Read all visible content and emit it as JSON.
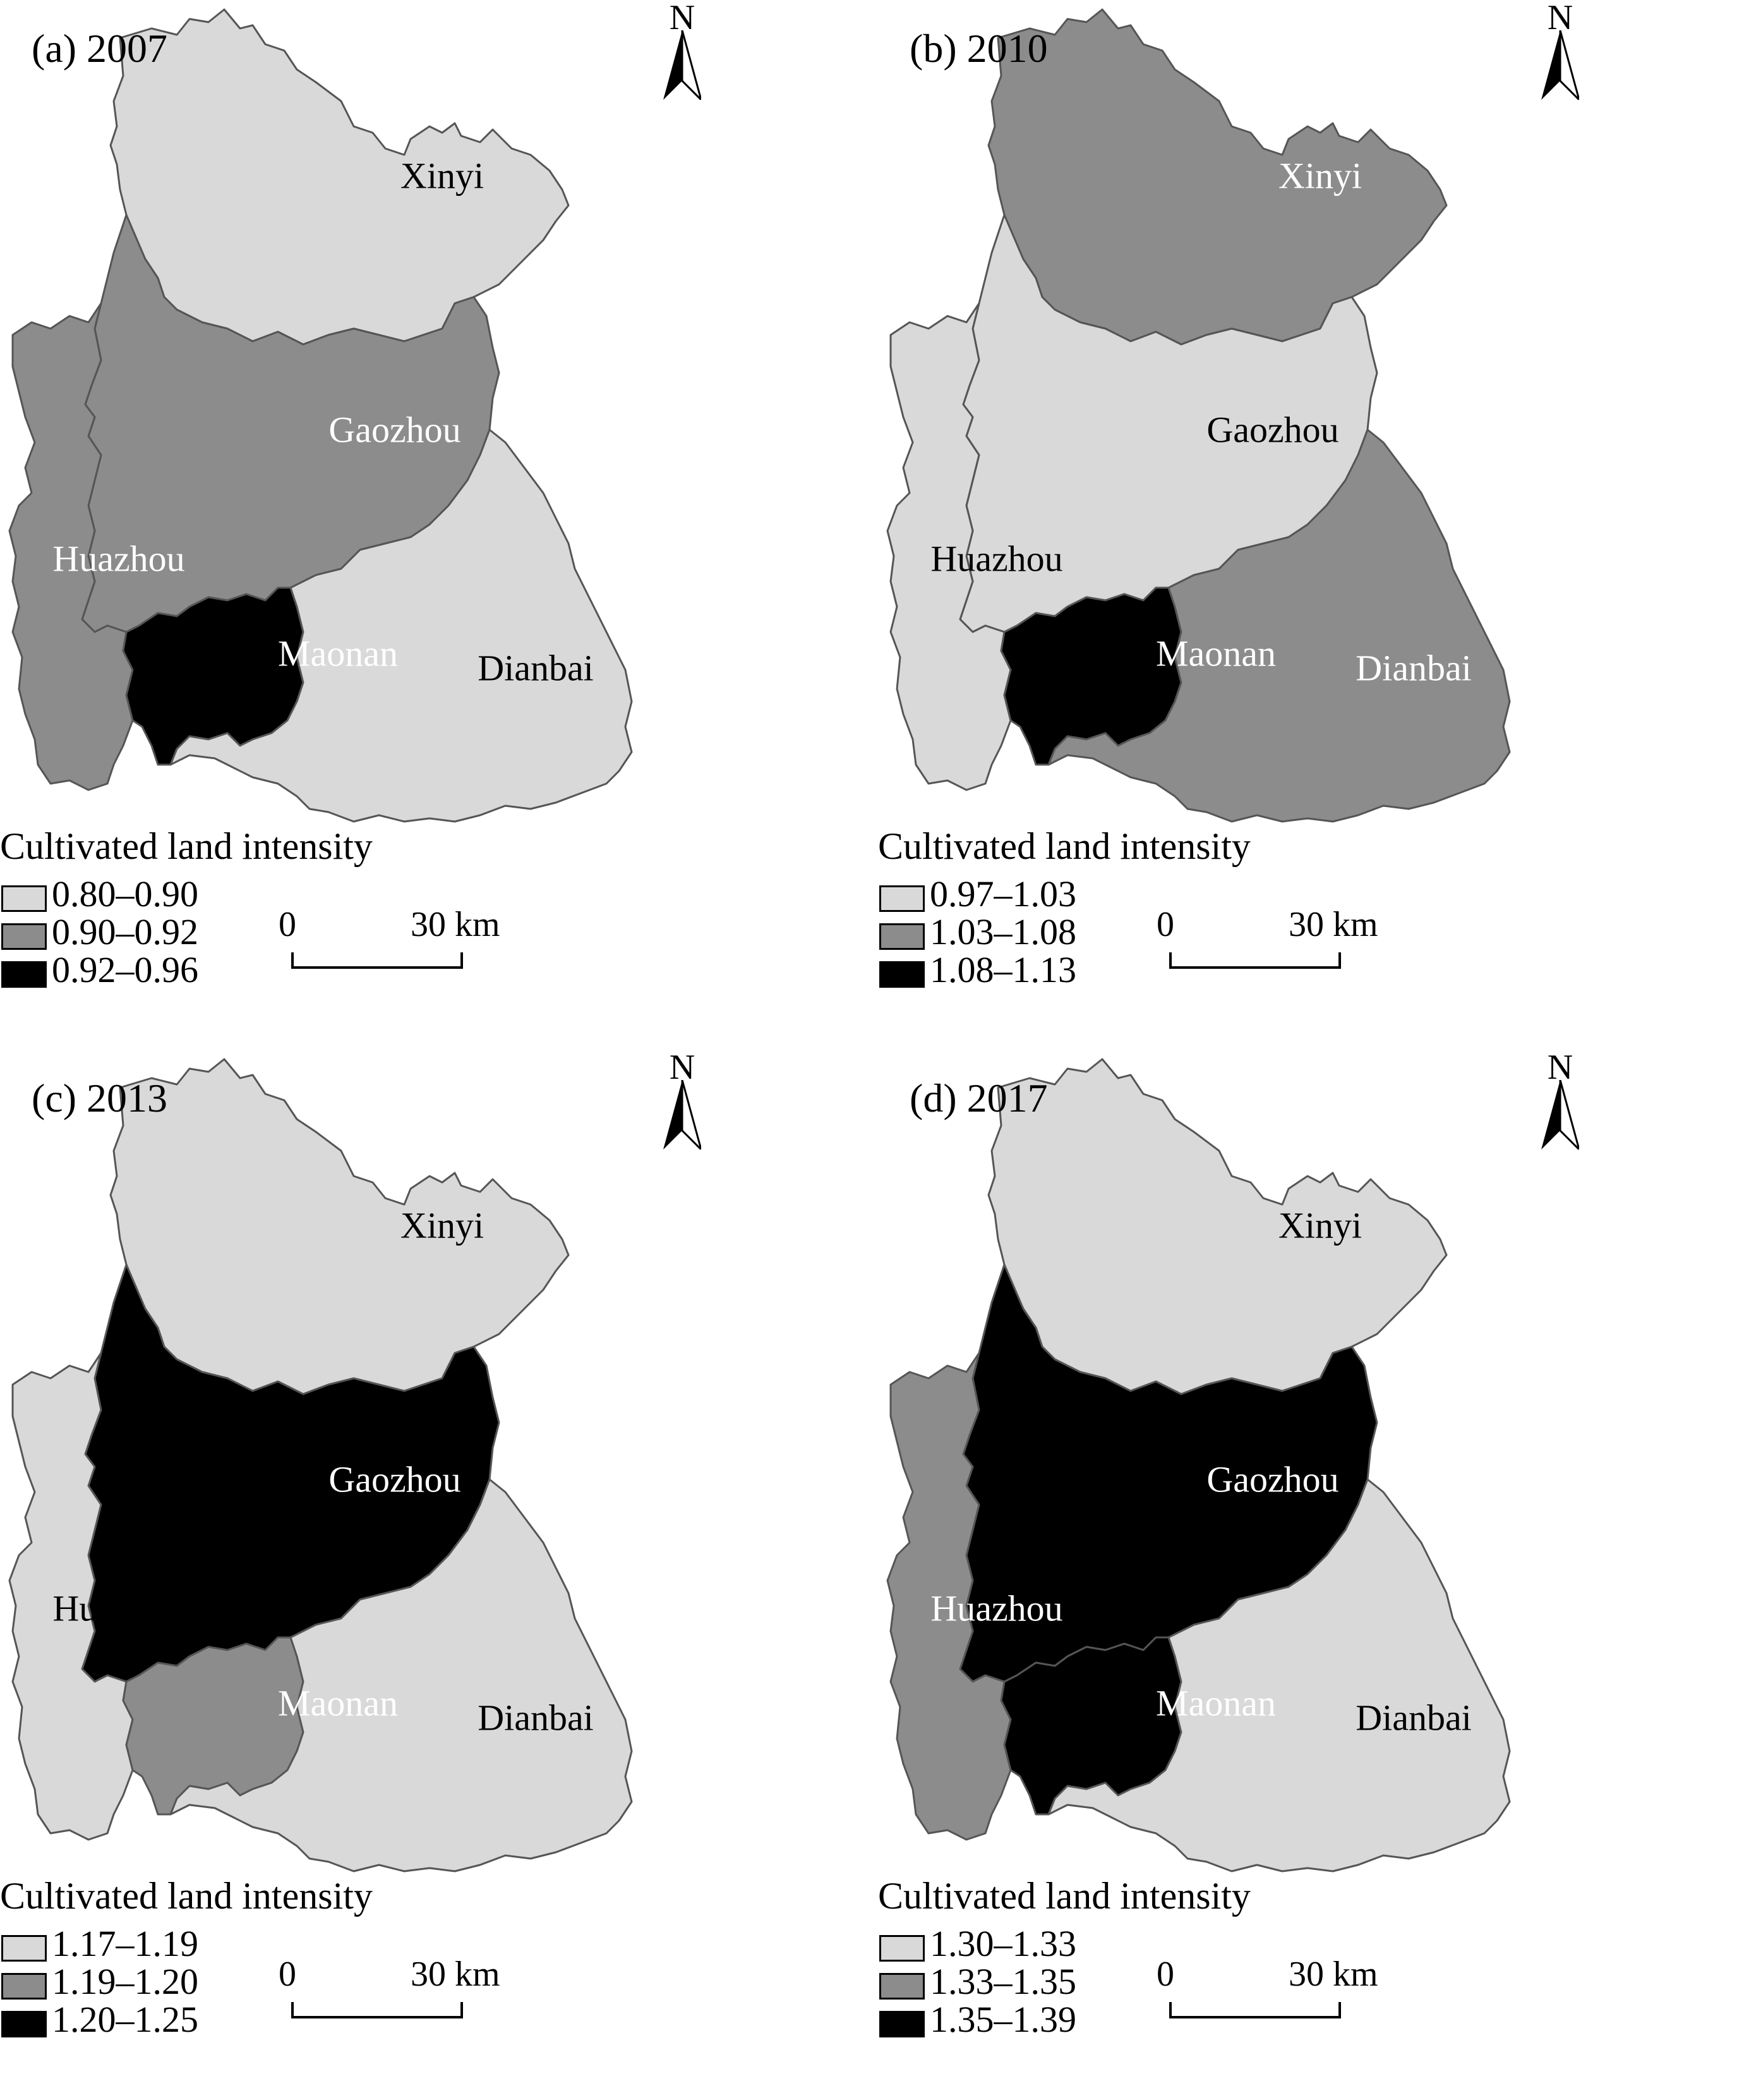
{
  "class_colors": [
    "#d9d9d9",
    "#8c8c8c",
    "#000000"
  ],
  "panels": [
    {
      "title": "(a)  2007",
      "north_label": "N",
      "counties": {
        "Xinyi": {
          "label": "Xinyi",
          "class": 0
        },
        "Gaozhou": {
          "label": "Gaozhou",
          "class": 1
        },
        "Huazhou": {
          "label": "Huazhou",
          "class": 1
        },
        "Maonan": {
          "label": "Maonan",
          "class": 2
        },
        "Dianbai": {
          "label": "Dianbai",
          "class": 0
        }
      },
      "legend": {
        "title": "Cultivated land intensity",
        "items": [
          {
            "range": "0.80–0.90",
            "class": 0
          },
          {
            "range": "0.90–0.92",
            "class": 1
          },
          {
            "range": "0.92–0.96",
            "class": 2
          }
        ]
      },
      "scale": {
        "zero": "0",
        "max": "30 km"
      }
    },
    {
      "title": "(b)  2010",
      "north_label": "N",
      "counties": {
        "Xinyi": {
          "label": "Xinyi",
          "class": 1
        },
        "Gaozhou": {
          "label": "Gaozhou",
          "class": 0
        },
        "Huazhou": {
          "label": "Huazhou",
          "class": 0
        },
        "Maonan": {
          "label": "Maonan",
          "class": 2
        },
        "Dianbai": {
          "label": "Dianbai",
          "class": 1
        }
      },
      "legend": {
        "title": "Cultivated land intensity",
        "items": [
          {
            "range": "0.97–1.03",
            "class": 0
          },
          {
            "range": "1.03–1.08",
            "class": 1
          },
          {
            "range": "1.08–1.13",
            "class": 2
          }
        ]
      },
      "scale": {
        "zero": "0",
        "max": "30 km"
      }
    },
    {
      "title": "(c)  2013",
      "north_label": "N",
      "counties": {
        "Xinyi": {
          "label": "Xinyi",
          "class": 0
        },
        "Gaozhou": {
          "label": "Gaozhou",
          "class": 2
        },
        "Huazhou": {
          "label": "Huazhou",
          "class": 0
        },
        "Maonan": {
          "label": "Maonan",
          "class": 1
        },
        "Dianbai": {
          "label": "Dianbai",
          "class": 0
        }
      },
      "legend": {
        "title": "Cultivated land intensity",
        "items": [
          {
            "range": "1.17–1.19",
            "class": 0
          },
          {
            "range": "1.19–1.20",
            "class": 1
          },
          {
            "range": "1.20–1.25",
            "class": 2
          }
        ]
      },
      "scale": {
        "zero": "0",
        "max": "30 km"
      }
    },
    {
      "title": "(d)  2017",
      "north_label": "N",
      "counties": {
        "Xinyi": {
          "label": "Xinyi",
          "class": 0
        },
        "Gaozhou": {
          "label": "Gaozhou",
          "class": 2
        },
        "Huazhou": {
          "label": "Huazhou",
          "class": 1
        },
        "Maonan": {
          "label": "Maonan",
          "class": 2
        },
        "Dianbai": {
          "label": "Dianbai",
          "class": 0
        }
      },
      "legend": {
        "title": "Cultivated land intensity",
        "items": [
          {
            "range": "1.30–1.33",
            "class": 0
          },
          {
            "range": "1.33–1.35",
            "class": 1
          },
          {
            "range": "1.35–1.39",
            "class": 2
          }
        ]
      },
      "scale": {
        "zero": "0",
        "max": "30 km"
      }
    }
  ]
}
